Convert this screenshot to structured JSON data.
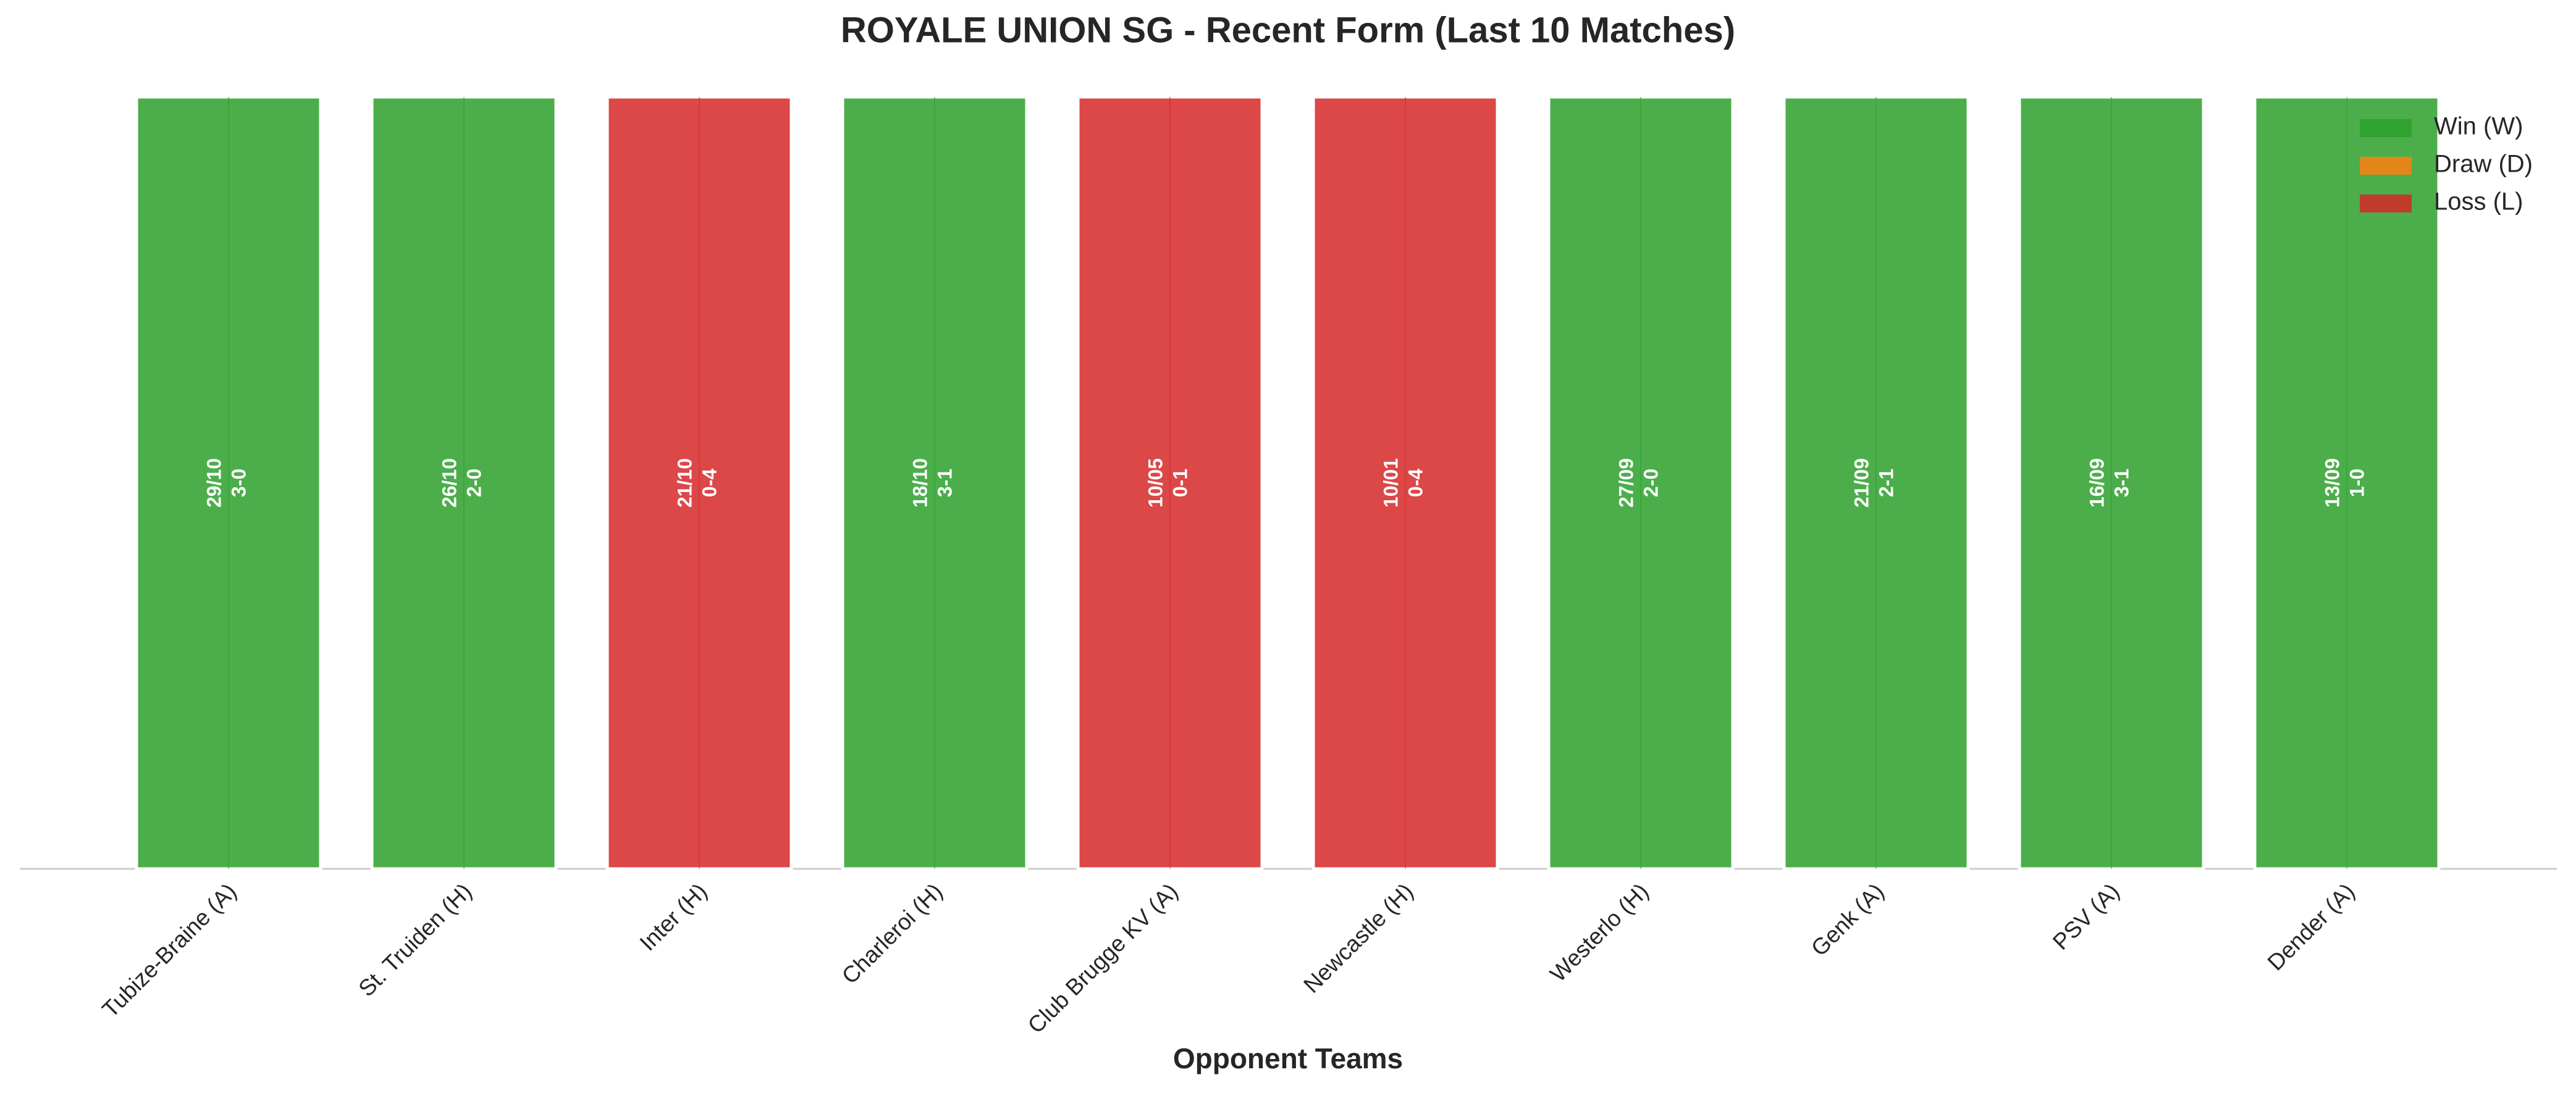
{
  "chart_data": {
    "type": "bar",
    "title": "ROYALE UNION SG - Recent Form (Last 10 Matches)",
    "x_label": "Opponent Teams",
    "categories": [
      "Tubize-Braine (A)",
      "St. Truiden (H)",
      "Inter (H)",
      "Charleroi (H)",
      "Club Brugge KV (A)",
      "Newcastle (H)",
      "Westerlo (H)",
      "Genk (A)",
      "PSV (A)",
      "Dender (A)"
    ],
    "values": [
      1,
      1,
      1,
      1,
      1,
      1,
      1,
      1,
      1,
      1
    ],
    "ylim": [
      0,
      1
    ],
    "dates": [
      "29/10",
      "26/10",
      "21/10",
      "18/10",
      "10/05",
      "10/01",
      "27/09",
      "21/09",
      "16/09",
      "13/09"
    ],
    "scores": [
      "3-0",
      "2-0",
      "0-4",
      "3-1",
      "0-1",
      "0-4",
      "2-0",
      "2-1",
      "3-1",
      "1-0"
    ],
    "colors": [
      "#2ca02c",
      "#2ca02c",
      "#d62728",
      "#2ca02c",
      "#d62728",
      "#d62728",
      "#2ca02c",
      "#2ca02c",
      "#2ca02c",
      "#2ca02c"
    ],
    "legend": [
      {
        "name": "Win (W)",
        "color": "#2ca02c"
      },
      {
        "name": "Draw (D)",
        "color": "#ff7f0e"
      },
      {
        "name": "Loss (L)",
        "color": "#d62728"
      }
    ],
    "legend_position": "upper right"
  }
}
